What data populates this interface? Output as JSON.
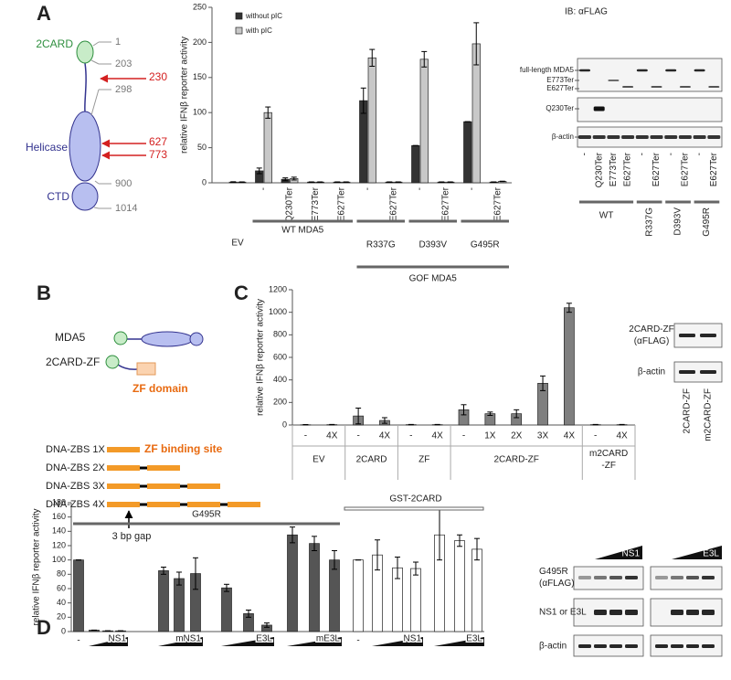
{
  "panel_labels": [
    "A",
    "B",
    "C",
    "D"
  ],
  "chart_data": [
    {
      "type": "bar",
      "y_label": "relative IFNβ reporter activity",
      "categories": [
        "EV",
        "-",
        "Q230Ter",
        "E773Ter",
        "E627Ter",
        "-",
        "E627Ter",
        "-",
        "E627Ter",
        "-",
        "E627Ter"
      ],
      "groups": [
        "WT MDA5",
        "R337G",
        "D393V",
        "G495R",
        "GOF MDA5"
      ],
      "series": [
        {
          "name": "without pIC",
          "color": "#333333",
          "values": [
            1,
            17,
            5,
            1,
            1,
            117,
            1,
            53,
            1,
            87,
            1
          ],
          "errors": [
            0.5,
            4,
            2,
            0.3,
            0.3,
            18,
            0.3,
            0,
            0.3,
            0,
            0.3
          ]
        },
        {
          "name": "with pIC",
          "color": "#c8c8c8",
          "values": [
            1,
            100,
            6,
            1,
            1,
            178,
            1,
            176,
            1,
            198,
            2
          ],
          "errors": [
            0.3,
            8,
            2,
            0.3,
            0.3,
            12,
            0.3,
            11,
            0.3,
            30,
            0.3
          ]
        }
      ],
      "ylim": [
        0,
        250
      ],
      "yticks": [
        0,
        50,
        100,
        150,
        200,
        250
      ],
      "legend": "upper-left"
    },
    {
      "type": "bar",
      "y_label": "relative IFNβ reporter activity",
      "categories": [
        "-",
        "4X",
        "-",
        "4X",
        "-",
        "4X",
        "-",
        "1X",
        "2X",
        "3X",
        "4X",
        "-",
        "4X"
      ],
      "groups": [
        {
          "lines": [
            "EV"
          ]
        },
        {
          "lines": [
            "2CARD"
          ]
        },
        {
          "lines": [
            "ZF"
          ]
        },
        {
          "lines": [
            "2CARD-ZF"
          ]
        },
        {
          "lines": [
            "m2CARD",
            "-ZF"
          ]
        }
      ],
      "color": "#7f7f7f",
      "values": [
        2,
        3,
        80,
        40,
        3,
        3,
        135,
        100,
        100,
        370,
        1040,
        3,
        3
      ],
      "errors": [
        2,
        2,
        70,
        25,
        2,
        2,
        45,
        15,
        35,
        65,
        40,
        2,
        2
      ],
      "ylim": [
        0,
        1200
      ],
      "yticks": [
        0,
        200,
        400,
        600,
        800,
        1000,
        1200
      ]
    },
    {
      "type": "bar",
      "y_label": "relative IFNβ reporter activity",
      "categories": [
        "-",
        null,
        null,
        null,
        null,
        null,
        null,
        null,
        null,
        null,
        null,
        null,
        null,
        "-",
        null,
        null,
        null,
        null,
        null,
        null
      ],
      "groups": [
        "G495R",
        "GST-2CARD"
      ],
      "doses": [
        "NS1",
        "mNS1",
        "E3L",
        "mE3L",
        "NS1",
        "E3L"
      ],
      "series": [
        {
          "color": "#555555",
          "values": [
            100,
            2,
            1,
            1,
            85,
            74,
            81,
            61,
            25,
            9,
            135,
            123,
            100,
            null,
            null,
            null,
            null,
            null,
            null,
            null
          ],
          "errors": [
            0,
            0,
            0,
            0,
            5,
            9,
            22,
            5,
            5,
            3,
            11,
            10,
            13,
            null,
            null,
            null,
            null,
            null,
            null,
            null
          ]
        },
        {
          "color": "#ffffff",
          "values": [
            null,
            null,
            null,
            null,
            null,
            null,
            null,
            null,
            null,
            null,
            null,
            null,
            null,
            100,
            107,
            89,
            88,
            135,
            127,
            115
          ],
          "errors": [
            null,
            null,
            null,
            null,
            null,
            null,
            null,
            null,
            null,
            null,
            null,
            null,
            null,
            0,
            21,
            15,
            9,
            35,
            8,
            15
          ]
        }
      ],
      "ylim": [
        0,
        180
      ],
      "yticks": [
        0,
        20,
        40,
        60,
        80,
        100,
        120,
        140,
        160,
        180
      ]
    }
  ],
  "diagram_a": {
    "domains": [
      "2CARD",
      "Helicase",
      "CTD"
    ],
    "positions": [
      1,
      203,
      298,
      900,
      1014
    ],
    "truncations": [
      230,
      627,
      773
    ]
  },
  "blot_a": {
    "title": "IB: αFLAG",
    "bands": [
      "full-length MDA5",
      "E773Ter",
      "E627Ter",
      "Q230Ter",
      "β-actin"
    ],
    "lanes": [
      "-",
      "Q230Ter",
      "E773Ter",
      "E627Ter",
      "-",
      "E627Ter",
      "-",
      "E627Ter",
      "-",
      "E627Ter"
    ],
    "groups": [
      "WT",
      "R337G",
      "D393V",
      "G495R"
    ]
  },
  "diagram_b": {
    "constructs": [
      "MDA5",
      "2CARD-ZF"
    ],
    "domain_label": "ZF domain",
    "dna": [
      "DNA-ZBS 1X",
      "DNA-ZBS 2X",
      "DNA-ZBS 3X",
      "DNA-ZBS 4X"
    ],
    "site_label": "ZF binding site",
    "gap_label": "3 bp gap"
  },
  "blot_c": {
    "bands": [
      {
        "lines": [
          "2CARD-ZF",
          "(αFLAG)"
        ]
      },
      {
        "lines": [
          "β-actin"
        ]
      }
    ],
    "lanes": [
      "2CARD-ZF",
      "m2CARD-ZF"
    ]
  },
  "blot_d": {
    "bands": [
      {
        "lines": [
          "G495R",
          "(αFLAG)"
        ]
      },
      {
        "lines": [
          "NS1 or E3L"
        ]
      },
      {
        "lines": [
          "β-actin"
        ]
      }
    ],
    "treatments": [
      "NS1",
      "E3L"
    ]
  }
}
